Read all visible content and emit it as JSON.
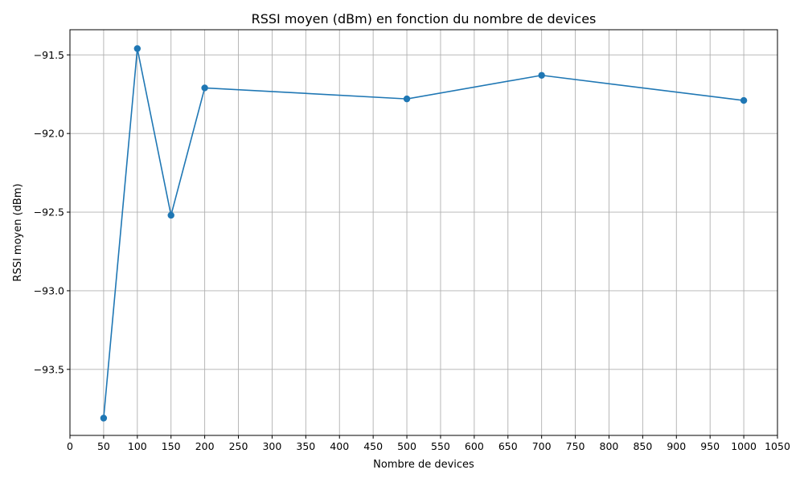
{
  "chart_data": {
    "type": "line",
    "title": "RSSI moyen (dBm) en fonction du nombre de devices",
    "xlabel": "Nombre de devices",
    "ylabel": "RSSI moyen (dBm)",
    "xlim": [
      0,
      1050
    ],
    "ylim": [
      -93.92,
      -91.34
    ],
    "x_ticks": [
      0,
      50,
      100,
      150,
      200,
      250,
      300,
      350,
      400,
      450,
      500,
      550,
      600,
      650,
      700,
      750,
      800,
      850,
      900,
      950,
      1000,
      1050
    ],
    "y_ticks": [
      -91.5,
      -92.0,
      -92.5,
      -93.0,
      -93.5
    ],
    "y_tick_labels": [
      "−91.5",
      "−92.0",
      "−92.5",
      "−93.0",
      "−93.5"
    ],
    "grid": true,
    "series": [
      {
        "color": "#1f77b4",
        "marker": "circle",
        "x": [
          50,
          100,
          150,
          200,
          500,
          700,
          1000
        ],
        "values": [
          -93.81,
          -91.46,
          -92.52,
          -91.71,
          -91.78,
          -91.63,
          -91.79
        ]
      }
    ]
  }
}
